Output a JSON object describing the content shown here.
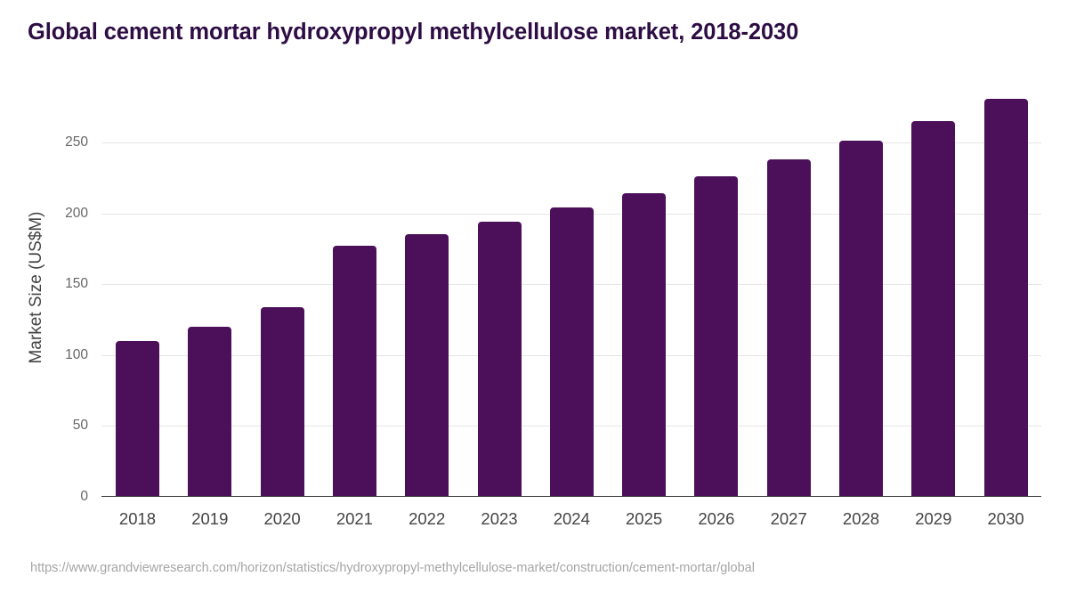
{
  "title": "Global cement mortar hydroxypropyl methylcellulose market, 2018-2030",
  "source": "https://www.grandviewresearch.com/horizon/statistics/hydroxypropyl-methylcellulose-market/construction/cement-mortar/global",
  "colors": {
    "bar": "#4b1059",
    "title": "#2d0d43",
    "grid": "#e5e5e5",
    "axis": "#333333"
  },
  "chart_data": {
    "type": "bar",
    "title": "Global cement mortar hydroxypropyl methylcellulose market, 2018-2030",
    "xlabel": "",
    "ylabel": "Market Size (US$M)",
    "categories": [
      "2018",
      "2019",
      "2020",
      "2021",
      "2022",
      "2023",
      "2024",
      "2025",
      "2026",
      "2027",
      "2028",
      "2029",
      "2030"
    ],
    "values": [
      110,
      120,
      134,
      177,
      185,
      194,
      204,
      214,
      226,
      238,
      251,
      265,
      281
    ],
    "ylim": [
      0,
      300
    ],
    "yticks": [
      "0",
      "50",
      "100",
      "150",
      "200",
      "250"
    ],
    "grid": true,
    "legend": "none"
  }
}
